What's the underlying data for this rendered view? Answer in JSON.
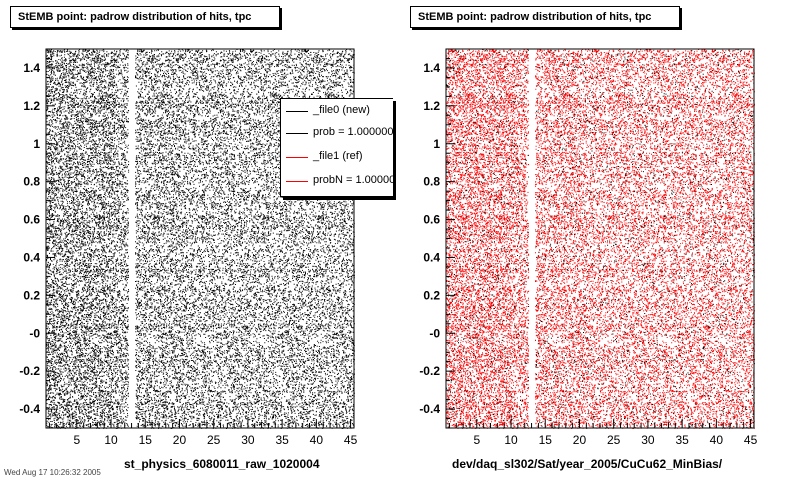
{
  "footer_text": "Wed Aug 17 10:26:32 2005",
  "legend": {
    "entries": [
      {
        "label": "_file0 (new)",
        "color": "#000000"
      },
      {
        "label": "prob = 1.000000",
        "color": "#000000"
      },
      {
        "label": "_file1 (ref)",
        "color": "#ff0000"
      },
      {
        "label": "probN = 1.000000",
        "color": "#ff0000"
      }
    ]
  },
  "chart_data": [
    {
      "type": "scatter",
      "title": "StEMB point: padrow distribution of hits, tpc",
      "xlabel": "st_physics_6080011_raw_1020004",
      "ylabel": "",
      "xlim": [
        0.5,
        45.5
      ],
      "ylim": [
        -0.5,
        1.5
      ],
      "xticks": [
        5,
        10,
        15,
        20,
        25,
        30,
        35,
        40,
        45
      ],
      "xtick_labels": [
        "5",
        "10",
        "15",
        "20",
        "25",
        "30",
        "35",
        "40",
        "45"
      ],
      "yticks": [
        1.4,
        1.2,
        1.0,
        0.8,
        0.6,
        0.4,
        0.2,
        0.0,
        -0.2,
        -0.4
      ],
      "ytick_labels": [
        "1.4",
        "1.2",
        "1",
        "0.8",
        "0.6",
        "0.4",
        "0.2",
        "-0",
        "-0.2",
        "-0.4"
      ],
      "marker_color": "#000000",
      "series": [
        {
          "name": "_file0 (new)",
          "distribution": "dense uniform hits over padrows 1-45, eta -0.5 to 1.5, densest at padrows 1-10, empty gap at padrow 13"
        }
      ],
      "empty_padrows": [
        13
      ],
      "grid": false,
      "legend_position": "top-right"
    },
    {
      "type": "scatter",
      "title": "StEMB point: padrow distribution of hits, tpc",
      "xlabel": "dev/daq_sl302/Sat/year_2005/CuCu62_MinBias/",
      "ylabel": "",
      "xlim": [
        0.5,
        45.5
      ],
      "ylim": [
        -0.5,
        1.5
      ],
      "xticks": [
        5,
        10,
        15,
        20,
        25,
        30,
        35,
        40,
        45
      ],
      "xtick_labels": [
        "5",
        "10",
        "15",
        "20",
        "25",
        "30",
        "35",
        "40",
        "45"
      ],
      "yticks": [
        1.4,
        1.2,
        1.0,
        0.8,
        0.6,
        0.4,
        0.2,
        0.0,
        -0.2,
        -0.4
      ],
      "ytick_labels": [
        "1.4",
        "1.2",
        "1",
        "0.8",
        "0.6",
        "0.4",
        "0.2",
        "-0",
        "-0.2",
        "-0.4"
      ],
      "marker_color": "#ff0000",
      "overlay_color": "#000000",
      "series": [
        {
          "name": "_file1 (ref)",
          "distribution": "dense uniform hits over padrows 1-45, eta -0.5 to 1.5, densest at padrows 1-10, empty gap at padrow 13"
        }
      ],
      "empty_padrows": [
        13
      ],
      "grid": false,
      "legend_position": ""
    }
  ]
}
